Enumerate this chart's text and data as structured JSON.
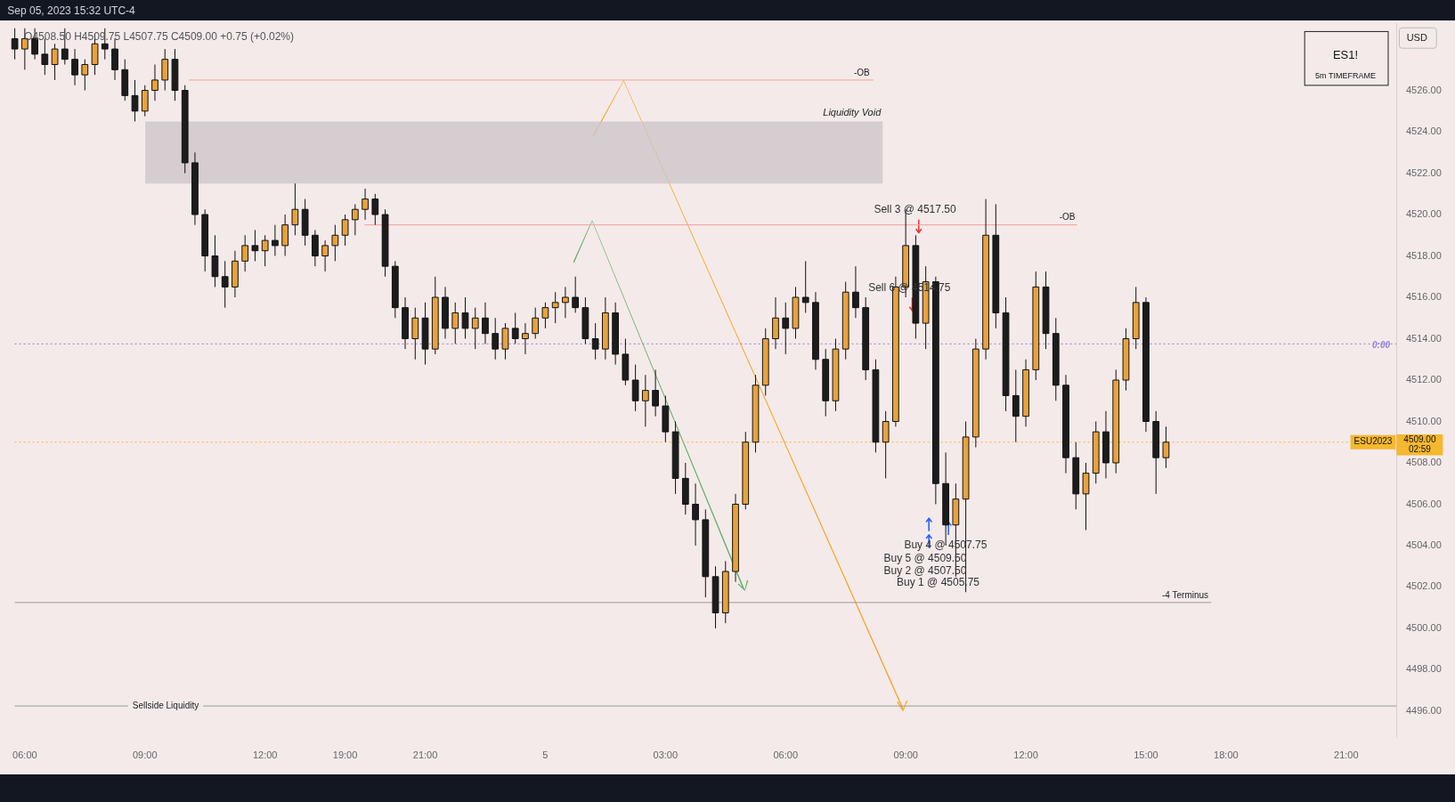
{
  "chart_data": {
    "type": "candlestick",
    "categories": [
      null,
      "06:00",
      null,
      null,
      null,
      null,
      null,
      null,
      null,
      null,
      null,
      null,
      null,
      "09:00",
      null,
      null,
      null,
      null,
      null,
      null,
      null,
      null,
      null,
      null,
      null,
      "12:00",
      null,
      null,
      null,
      null,
      null,
      null,
      null,
      "19:00",
      null,
      null,
      null,
      null,
      null,
      null,
      null,
      "21:00",
      null,
      null,
      null,
      null,
      null,
      null,
      null,
      null,
      null,
      null,
      null,
      "5",
      null,
      null,
      null,
      null,
      null,
      null,
      null,
      null,
      null,
      null,
      null,
      "03:00",
      null,
      null,
      null,
      null,
      null,
      null,
      null,
      null,
      null,
      null,
      null,
      "06:00",
      null,
      null,
      null,
      null,
      null,
      null,
      null,
      null,
      null,
      null,
      null,
      "09:00",
      null,
      null,
      null,
      null,
      null,
      null,
      null,
      null,
      null,
      null,
      null,
      "12:00",
      null,
      null,
      null,
      null,
      null,
      null,
      null,
      null,
      null,
      null,
      null,
      "15:00",
      null,
      null,
      null,
      null,
      null,
      null,
      null,
      "18:00",
      null,
      null,
      null,
      null,
      null,
      null,
      null,
      null,
      null,
      null,
      null,
      "21:00",
      null,
      null,
      null,
      null,
      null
    ],
    "ohlc": [
      [
        4528.5,
        4529.0,
        4527.5,
        4528.0
      ],
      [
        4528.0,
        4529.0,
        4527.0,
        4528.5
      ],
      [
        4528.5,
        4529.0,
        4527.5,
        4527.75
      ],
      [
        4527.75,
        4528.5,
        4526.75,
        4527.25
      ],
      [
        4527.25,
        4528.25,
        4526.5,
        4528.0
      ],
      [
        4528.0,
        4529.0,
        4527.25,
        4527.5
      ],
      [
        4527.5,
        4528.0,
        4526.25,
        4526.75
      ],
      [
        4526.75,
        4527.5,
        4526.0,
        4527.25
      ],
      [
        4527.25,
        4528.75,
        4526.75,
        4528.25
      ],
      [
        4528.25,
        4529.0,
        4527.5,
        4528.0
      ],
      [
        4528.0,
        4528.5,
        4526.5,
        4527.0
      ],
      [
        4527.0,
        4527.5,
        4525.5,
        4525.75
      ],
      [
        4525.75,
        4526.5,
        4524.5,
        4525.0
      ],
      [
        4525.0,
        4526.25,
        4524.75,
        4526.0
      ],
      [
        4526.0,
        4527.25,
        4525.5,
        4526.5
      ],
      [
        4526.5,
        4528.0,
        4526.0,
        4527.5
      ],
      [
        4527.5,
        4528.0,
        4525.5,
        4526.0
      ],
      [
        4526.0,
        4526.25,
        4522.0,
        4522.5
      ],
      [
        4522.5,
        4523.0,
        4519.5,
        4520.0
      ],
      [
        4520.0,
        4520.25,
        4517.25,
        4518.0
      ],
      [
        4518.0,
        4519.0,
        4516.5,
        4517.0
      ],
      [
        4517.0,
        4517.75,
        4515.5,
        4516.5
      ],
      [
        4516.5,
        4518.25,
        4516.0,
        4517.75
      ],
      [
        4517.75,
        4519.0,
        4517.25,
        4518.5
      ],
      [
        4518.5,
        4519.25,
        4517.75,
        4518.25
      ],
      [
        4518.25,
        4519.0,
        4517.5,
        4518.75
      ],
      [
        4518.75,
        4519.5,
        4518.0,
        4518.5
      ],
      [
        4518.5,
        4520.0,
        4518.0,
        4519.5
      ],
      [
        4519.5,
        4521.5,
        4519.0,
        4520.25
      ],
      [
        4520.25,
        4520.75,
        4518.5,
        4519.0
      ],
      [
        4519.0,
        4519.25,
        4517.5,
        4518.0
      ],
      [
        4518.0,
        4518.75,
        4517.25,
        4518.5
      ],
      [
        4518.5,
        4519.5,
        4517.75,
        4519.0
      ],
      [
        4519.0,
        4520.0,
        4518.5,
        4519.75
      ],
      [
        4519.75,
        4520.5,
        4519.0,
        4520.25
      ],
      [
        4520.25,
        4521.25,
        4519.75,
        4520.75
      ],
      [
        4520.75,
        4521.0,
        4519.5,
        4520.0
      ],
      [
        4520.0,
        4520.25,
        4517.0,
        4517.5
      ],
      [
        4517.5,
        4517.75,
        4515.0,
        4515.5
      ],
      [
        4515.5,
        4516.0,
        4513.5,
        4514.0
      ],
      [
        4514.0,
        4515.5,
        4513.0,
        4515.0
      ],
      [
        4515.0,
        4515.75,
        4512.75,
        4513.5
      ],
      [
        4513.5,
        4517.0,
        4513.25,
        4516.0
      ],
      [
        4516.0,
        4516.5,
        4514.0,
        4514.5
      ],
      [
        4514.5,
        4515.75,
        4513.75,
        4515.25
      ],
      [
        4515.25,
        4516.0,
        4514.0,
        4514.5
      ],
      [
        4514.5,
        4515.5,
        4513.5,
        4515.0
      ],
      [
        4515.0,
        4515.75,
        4513.75,
        4514.25
      ],
      [
        4514.25,
        4515.0,
        4513.0,
        4513.5
      ],
      [
        4513.5,
        4514.75,
        4513.0,
        4514.5
      ],
      [
        4514.5,
        4515.25,
        4513.75,
        4514.0
      ],
      [
        4514.0,
        4514.75,
        4513.25,
        4514.25
      ],
      [
        4514.25,
        4515.5,
        4514.0,
        4515.0
      ],
      [
        4515.0,
        4515.75,
        4514.5,
        4515.5
      ],
      [
        4515.5,
        4516.25,
        4514.75,
        4515.75
      ],
      [
        4515.75,
        4516.5,
        4515.0,
        4516.0
      ],
      [
        4516.0,
        4517.0,
        4515.25,
        4515.5
      ],
      [
        4515.5,
        4516.0,
        4513.75,
        4514.0
      ],
      [
        4514.0,
        4514.75,
        4513.0,
        4513.5
      ],
      [
        4513.5,
        4516.0,
        4513.0,
        4515.25
      ],
      [
        4515.25,
        4515.75,
        4512.75,
        4513.25
      ],
      [
        4513.25,
        4514.0,
        4511.75,
        4512.0
      ],
      [
        4512.0,
        4512.75,
        4510.5,
        4511.0
      ],
      [
        4511.0,
        4512.25,
        4509.75,
        4511.5
      ],
      [
        4511.5,
        4512.5,
        4510.25,
        4510.75
      ],
      [
        4510.75,
        4511.25,
        4509.0,
        4509.5
      ],
      [
        4509.5,
        4510.0,
        4506.5,
        4507.25
      ],
      [
        4507.25,
        4508.0,
        4505.5,
        4506.0
      ],
      [
        4506.0,
        4507.0,
        4504.0,
        4505.25
      ],
      [
        4505.25,
        4505.75,
        4501.5,
        4502.5
      ],
      [
        4502.5,
        4503.0,
        4500.0,
        4500.75
      ],
      [
        4500.75,
        4503.25,
        4500.25,
        4502.75
      ],
      [
        4502.75,
        4506.5,
        4502.25,
        4506.0
      ],
      [
        4506.0,
        4509.5,
        4505.75,
        4509.0
      ],
      [
        4509.0,
        4512.25,
        4508.5,
        4511.75
      ],
      [
        4511.75,
        4514.5,
        4511.25,
        4514.0
      ],
      [
        4514.0,
        4516.0,
        4513.5,
        4515.0
      ],
      [
        4515.0,
        4515.75,
        4513.25,
        4514.5
      ],
      [
        4514.5,
        4516.5,
        4514.0,
        4516.0
      ],
      [
        4516.0,
        4517.75,
        4515.25,
        4515.75
      ],
      [
        4515.75,
        4516.25,
        4512.5,
        4513.0
      ],
      [
        4513.0,
        4513.5,
        4510.25,
        4511.0
      ],
      [
        4511.0,
        4514.0,
        4510.5,
        4513.5
      ],
      [
        4513.5,
        4516.75,
        4513.0,
        4516.25
      ],
      [
        4516.25,
        4517.5,
        4515.0,
        4515.5
      ],
      [
        4515.5,
        4516.0,
        4512.0,
        4512.5
      ],
      [
        4512.5,
        4513.0,
        4508.5,
        4509.0
      ],
      [
        4509.0,
        4510.5,
        4507.25,
        4510.0
      ],
      [
        4510.0,
        4517.0,
        4509.75,
        4516.5
      ],
      [
        4516.5,
        4520.25,
        4516.0,
        4518.5
      ],
      [
        4518.5,
        4519.0,
        4514.0,
        4514.75
      ],
      [
        4514.75,
        4517.5,
        4513.5,
        4516.75
      ],
      [
        4516.75,
        4517.0,
        4506.0,
        4507.0
      ],
      [
        4507.0,
        4508.5,
        4504.0,
        4505.0
      ],
      [
        4505.0,
        4507.0,
        4502.5,
        4506.25
      ],
      [
        4506.25,
        4510.0,
        4501.75,
        4509.25
      ],
      [
        4509.25,
        4514.0,
        4508.75,
        4513.5
      ],
      [
        4513.5,
        4520.75,
        4513.0,
        4519.0
      ],
      [
        4519.0,
        4520.5,
        4514.5,
        4515.25
      ],
      [
        4515.25,
        4516.0,
        4510.5,
        4511.25
      ],
      [
        4511.25,
        4512.5,
        4509.0,
        4510.25
      ],
      [
        4510.25,
        4513.0,
        4509.75,
        4512.5
      ],
      [
        4512.5,
        4517.25,
        4512.0,
        4516.5
      ],
      [
        4516.5,
        4517.25,
        4513.5,
        4514.25
      ],
      [
        4514.25,
        4515.0,
        4511.0,
        4511.75
      ],
      [
        4511.75,
        4512.25,
        4507.5,
        4508.25
      ],
      [
        4508.25,
        4509.0,
        4505.75,
        4506.5
      ],
      [
        4506.5,
        4508.0,
        4504.75,
        4507.5
      ],
      [
        4507.5,
        4510.0,
        4507.0,
        4509.5
      ],
      [
        4509.5,
        4510.5,
        4507.25,
        4508.0
      ],
      [
        4508.0,
        4512.5,
        4507.5,
        4512.0
      ],
      [
        4512.0,
        4514.5,
        4511.5,
        4514.0
      ],
      [
        4514.0,
        4516.5,
        4513.5,
        4515.75
      ],
      [
        4515.75,
        4516.0,
        4509.5,
        4510.0
      ],
      [
        4510.0,
        4510.5,
        4506.5,
        4508.25
      ],
      [
        4508.25,
        4509.75,
        4507.75,
        4509.0
      ],
      null,
      null,
      null,
      null,
      null,
      null,
      null,
      null,
      null,
      null,
      null,
      null,
      null,
      null,
      null,
      null,
      null,
      null,
      null,
      null,
      null,
      null,
      null
    ],
    "colors": [
      "#1c1c1c",
      "#e9a23b",
      "#1c1c1c",
      "#1c1c1c",
      "#e9a23b",
      "#1c1c1c",
      "#1c1c1c",
      "#e9a23b",
      "#e9a23b",
      "#1c1c1c",
      "#1c1c1c",
      "#1c1c1c",
      "#1c1c1c",
      "#e9a23b",
      "#e9a23b",
      "#e9a23b",
      "#1c1c1c",
      "#1c1c1c",
      "#1c1c1c",
      "#1c1c1c",
      "#1c1c1c",
      "#1c1c1c",
      "#e9a23b",
      "#e9a23b",
      "#1c1c1c",
      "#e9a23b",
      "#1c1c1c",
      "#e9a23b",
      "#e9a23b",
      "#1c1c1c",
      "#1c1c1c",
      "#e9a23b",
      "#e9a23b",
      "#e9a23b",
      "#e9a23b",
      "#e9a23b",
      "#1c1c1c",
      "#1c1c1c",
      "#1c1c1c",
      "#1c1c1c",
      "#e9a23b",
      "#1c1c1c",
      "#e9a23b",
      "#1c1c1c",
      "#e9a23b",
      "#1c1c1c",
      "#e9a23b",
      "#1c1c1c",
      "#1c1c1c",
      "#e9a23b",
      "#1c1c1c",
      "#e9a23b",
      "#e9a23b",
      "#e9a23b",
      "#e9a23b",
      "#e9a23b",
      "#1c1c1c",
      "#1c1c1c",
      "#1c1c1c",
      "#e9a23b",
      "#1c1c1c",
      "#1c1c1c",
      "#1c1c1c",
      "#e9a23b",
      "#1c1c1c",
      "#1c1c1c",
      "#1c1c1c",
      "#1c1c1c",
      "#1c1c1c",
      "#1c1c1c",
      "#1c1c1c",
      "#e9a23b",
      "#e9a23b",
      "#e9a23b",
      "#e9a23b",
      "#e9a23b",
      "#e9a23b",
      "#1c1c1c",
      "#e9a23b",
      "#1c1c1c",
      "#1c1c1c",
      "#1c1c1c",
      "#e9a23b",
      "#e9a23b",
      "#1c1c1c",
      "#1c1c1c",
      "#1c1c1c",
      "#e9a23b",
      "#e9a23b",
      "#e9a23b",
      "#1c1c1c",
      "#e9a23b",
      "#1c1c1c",
      "#1c1c1c",
      "#e9a23b",
      "#e9a23b",
      "#e9a23b",
      "#e9a23b",
      "#1c1c1c",
      "#1c1c1c",
      "#1c1c1c",
      "#e9a23b",
      "#e9a23b",
      "#1c1c1c",
      "#1c1c1c",
      "#1c1c1c",
      "#1c1c1c",
      "#e9a23b",
      "#e9a23b",
      "#1c1c1c",
      "#e9a23b",
      "#e9a23b",
      "#e9a23b",
      "#1c1c1c",
      "#1c1c1c",
      "#e9a23b",
      null,
      null,
      null,
      null,
      null,
      null,
      null,
      null,
      null,
      null,
      null,
      null,
      null,
      null,
      null,
      null,
      null,
      null,
      null,
      null,
      null,
      null,
      null
    ],
    "ylim": [
      4494.75,
      4529.25
    ],
    "yticks": [
      {
        "value": 4496,
        "label": "4496.00"
      },
      {
        "value": 4498,
        "label": "4498.00"
      },
      {
        "value": 4500,
        "label": "4500.00"
      },
      {
        "value": 4502,
        "label": "4502.00"
      },
      {
        "value": 4504,
        "label": "4504.00"
      },
      {
        "value": 4506,
        "label": "4506.00"
      },
      {
        "value": 4508,
        "label": "4508.00"
      },
      {
        "value": 4510,
        "label": "4510.00"
      },
      {
        "value": 4512,
        "label": "4512.00"
      },
      {
        "value": 4514,
        "label": "4514.00"
      },
      {
        "value": 4516,
        "label": "4516.00"
      },
      {
        "value": 4518,
        "label": "4518.00"
      },
      {
        "value": 4520,
        "label": "4520.00"
      },
      {
        "value": 4522,
        "label": "4522.00"
      },
      {
        "value": 4524,
        "label": "4524.00"
      },
      {
        "value": 4526,
        "label": "4526.00"
      }
    ],
    "ref_lines": [
      {
        "axis": "y",
        "value": 4526.5,
        "label": "-OB",
        "color": "#f2a09b"
      },
      {
        "axis": "y",
        "value": 4519.5,
        "label": "-OB",
        "color": "#f2a09b"
      },
      {
        "axis": "y",
        "value": 4513.75,
        "color": "#8f7fd6",
        "line_style": "dotted"
      },
      {
        "axis": "y",
        "value": 4509,
        "label": "ESU2023",
        "color": "#f5b82e",
        "line_style": "dotted"
      },
      {
        "axis": "y",
        "value": 4501.25,
        "label": "-4 Terminus",
        "color": "#9a9a9a"
      },
      {
        "axis": "y",
        "value": 4496.25,
        "label": "Sellside Liquidity",
        "color": "#9a9a9a"
      }
    ],
    "bands": [
      {
        "axis": "y",
        "from": 4521.5,
        "to": 4524.5,
        "label": "Liquidity Void",
        "color": "#cdc5c8"
      }
    ],
    "annotations": [
      "Sep 05, 2023 15:32 UTC-4",
      "O4508.50 H4509.75 L4507.75 C4509.00 +0.75 (+0.02%)",
      "ES1!",
      "5m TIMEFRAME",
      "USD",
      "Sell 3 @ 4517.50",
      "Sell 6 @ 4514.75",
      "Buy 4 @ 4507.75",
      "Buy 5 @ 4509.50",
      "Buy 2 @ 4507.50",
      "Buy 1 @ 4505.75",
      "4509.00",
      "02:59",
      "0:00"
    ]
  }
}
